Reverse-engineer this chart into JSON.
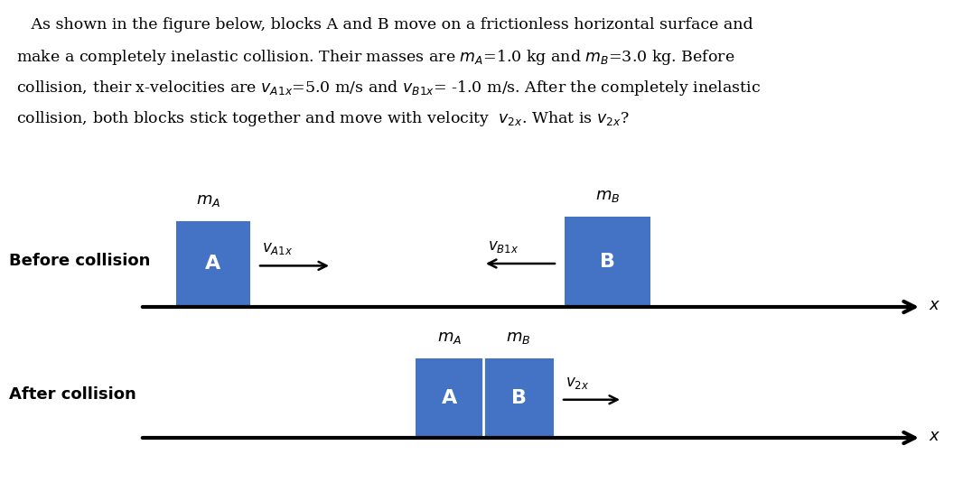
{
  "background_color": "#ffffff",
  "block_color": "#4472C4",
  "label_before": "Before collision",
  "label_after": "After collision",
  "block_A_label": "A",
  "block_B_label": "B",
  "mA_label": "$m_A$",
  "mB_label": "$m_B$",
  "vA1x_label": "$v_{A1x}$",
  "vB1x_label": "$v_{B1x}$",
  "v2x_label": "$v_{2x}$",
  "x_label": "$x$",
  "para_line1": "   As shown in the figure below, blocks A and B move on a frictionless horizontal surface and",
  "para_line2": "make a completely inelastic collision. Their masses are $m_A$=1.0 kg and $m_B$=3.0 kg. Before",
  "para_line3": "collision, their x-velocities are $v_{A1x}$=5.0 m/s and $v_{B1x}$= -1.0 m/s. After the completely inelastic",
  "para_line4": "collision, both blocks stick together and move with velocity  $v_{2x}$. What is $v_{2x}$?"
}
